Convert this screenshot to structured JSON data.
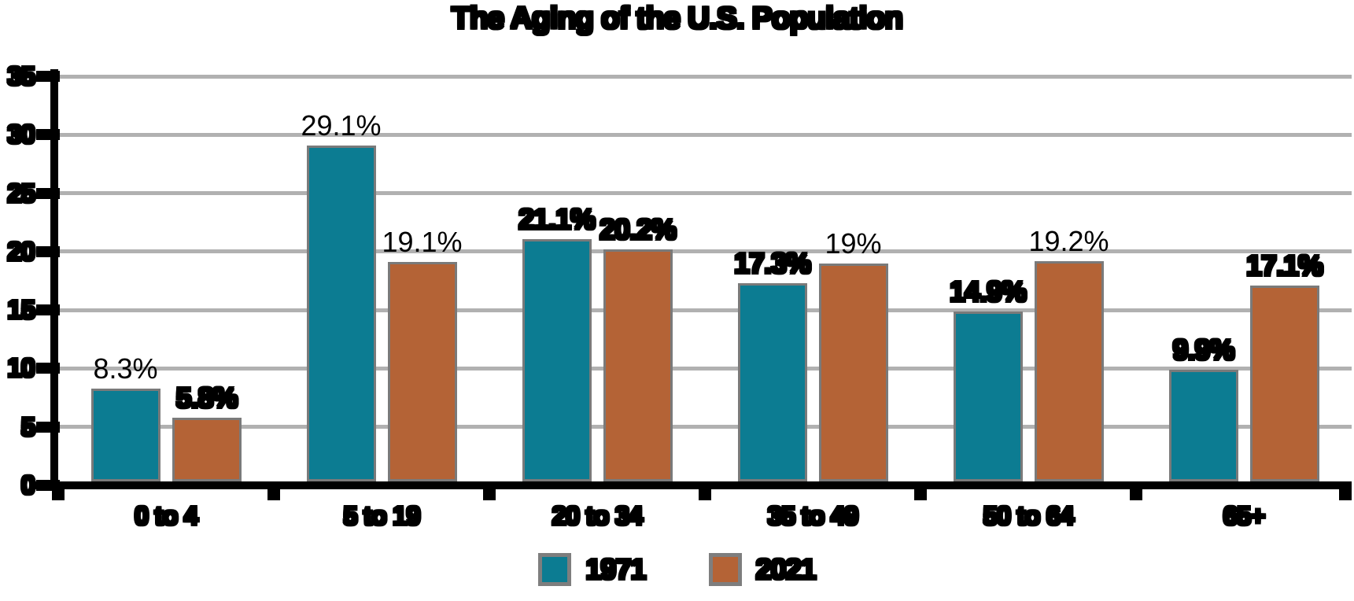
{
  "title": "The Aging of the U.S. Population",
  "colors": {
    "series_1971": "#0c7c92",
    "series_2021": "#b46336",
    "bar_border": "#7a7a7a",
    "gridline": "#b1b1b1",
    "axis": "#000000",
    "text": "#000000",
    "background": "#ffffff"
  },
  "chart_data": {
    "type": "bar",
    "title": "The Aging of the U.S. Population",
    "xlabel": "",
    "ylabel": "",
    "categories": [
      "0 to 4",
      "5 to 19",
      "20 to 34",
      "35 to 49",
      "50 to 64",
      "65+"
    ],
    "series": [
      {
        "name": "1971",
        "color": "#0c7c92",
        "values": [
          8.3,
          29.1,
          21.1,
          17.3,
          14.9,
          9.9
        ],
        "labels": [
          "8.3%",
          "29.1%",
          "21.1%",
          "17.3%",
          "14.9%",
          "9.9%"
        ],
        "label_emphasis": [
          "normal",
          "normal",
          "heavy",
          "heavy",
          "heavy",
          "heavy"
        ]
      },
      {
        "name": "2021",
        "color": "#b46336",
        "values": [
          5.8,
          19.1,
          20.2,
          19.0,
          19.2,
          17.1
        ],
        "labels": [
          "5.8%",
          "19.1%",
          "20.2%",
          "19%",
          "19.2%",
          "17.1%"
        ],
        "label_emphasis": [
          "heavy",
          "normal",
          "heavy",
          "normal",
          "normal",
          "heavy"
        ]
      }
    ],
    "ylim": [
      0,
      35
    ],
    "y_ticks": [
      0,
      5,
      10,
      15,
      20,
      25,
      30,
      35
    ],
    "y_tick_labels": [
      "0",
      "5",
      "10",
      "15",
      "20",
      "25",
      "30",
      "35"
    ],
    "grid": true,
    "legend_position": "bottom",
    "bar_value_labels_shown": true
  }
}
